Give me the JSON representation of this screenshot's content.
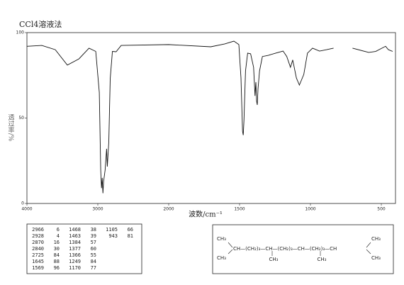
{
  "chart_data": {
    "type": "line",
    "title": "CCl4溶液法",
    "x_label": "波数/cm⁻¹",
    "y_label": "透过率/%",
    "xlim": [
      4000,
      400
    ],
    "xticks": [
      4000,
      3000,
      2000,
      1500,
      1000,
      500
    ],
    "ylim": [
      0,
      100
    ],
    "yticks": [
      0,
      50,
      100
    ],
    "color": "#111",
    "x": [
      4000,
      3790,
      3600,
      3430,
      3267,
      3124,
      3029,
      2979,
      2959,
      2948,
      2938,
      2928,
      2918,
      2897,
      2876,
      2866,
      2845,
      2825,
      2794,
      2742,
      2670,
      2000,
      1703,
      1604,
      1540,
      1505,
      1490,
      1479,
      1474,
      1469,
      1458,
      1443,
      1422,
      1401,
      1391,
      1385,
      1380,
      1375,
      1370,
      1359,
      1339,
      1297,
      1245,
      1193,
      1167,
      1141,
      1125,
      1099,
      1078,
      1047,
      1021,
      985,
      936,
      886,
      837,
      780,
      703,
      589,
      540,
      470,
      450,
      420
    ],
    "values": [
      92,
      92.5,
      90,
      81,
      84.6,
      90.9,
      89,
      65,
      19.5,
      9,
      15,
      6,
      13,
      19.5,
      32,
      21.6,
      36,
      73,
      89,
      88.8,
      92.5,
      93,
      91.7,
      93.4,
      95,
      93,
      73.4,
      42.3,
      40,
      48.5,
      77.6,
      88,
      87.6,
      79.7,
      63,
      71,
      60,
      57.7,
      67,
      77.6,
      86,
      86.7,
      88,
      89.2,
      86,
      79.7,
      84,
      73.4,
      69.3,
      75.5,
      88,
      90.9,
      89.2,
      90,
      90.9,
      null,
      90.9,
      88.4,
      89,
      92,
      90,
      89
    ]
  },
  "peak_table": [
    [
      [
        "2966",
        "6"
      ],
      [
        "1468",
        "38"
      ],
      [
        "1105",
        "66"
      ]
    ],
    [
      [
        "2928",
        "4"
      ],
      [
        "1463",
        "39"
      ],
      [
        "943",
        "81"
      ]
    ],
    [
      [
        "2870",
        "16"
      ],
      [
        "1384",
        "57"
      ]
    ],
    [
      [
        "2840",
        "30"
      ],
      [
        "1377",
        "60"
      ]
    ],
    [
      [
        "2725",
        "84"
      ],
      [
        "1366",
        "55"
      ]
    ],
    [
      [
        "1645",
        "88"
      ],
      [
        "1249",
        "84"
      ]
    ],
    [
      [
        "1569",
        "96"
      ],
      [
        "1170",
        "77"
      ]
    ]
  ],
  "structure": {
    "groups": [
      "CH₃",
      "CH₃",
      "CH—(CH₂)₃—CH—(CH₂)₃—CH—(CH₂)₃—CH",
      "CH₃",
      "CH₃",
      "CH₃",
      "CH₃"
    ]
  }
}
